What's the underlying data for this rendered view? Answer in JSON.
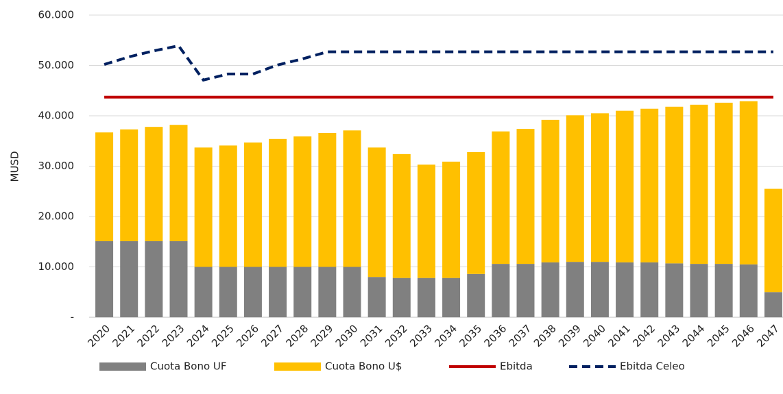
{
  "chart_data": {
    "type": "bar",
    "stacked": true,
    "y_label": "MUSD",
    "categories": [
      "2020",
      "2021",
      "2022",
      "2023",
      "2024",
      "2025",
      "2026",
      "2027",
      "2028",
      "2029",
      "2030",
      "2031",
      "2032",
      "2033",
      "2034",
      "2035",
      "2036",
      "2037",
      "2038",
      "2039",
      "2040",
      "2041",
      "2042",
      "2043",
      "2044",
      "2045",
      "2046",
      "2047"
    ],
    "series": [
      {
        "name": "Cuota Bono UF",
        "color": "#808080",
        "kind": "bar",
        "values": [
          15100,
          15100,
          15100,
          15100,
          10000,
          10000,
          10000,
          10000,
          10000,
          10000,
          10000,
          8000,
          7800,
          7800,
          7800,
          8600,
          10600,
          10600,
          10900,
          11000,
          11000,
          10900,
          10900,
          10700,
          10600,
          10600,
          10500,
          5000
        ]
      },
      {
        "name": "Cuota Bono U$",
        "color": "#ffc000",
        "kind": "bar",
        "values": [
          21600,
          22200,
          22700,
          23100,
          23700,
          24100,
          24700,
          25400,
          25900,
          26600,
          27100,
          25700,
          24600,
          22500,
          23100,
          24200,
          26300,
          26800,
          28300,
          29100,
          29500,
          30100,
          30500,
          31100,
          31600,
          32000,
          32400,
          20500
        ]
      },
      {
        "name": "Ebitda",
        "color": "#c00000",
        "kind": "line",
        "dash": false,
        "values": [
          43700,
          43700,
          43700,
          43700,
          43700,
          43700,
          43700,
          43700,
          43700,
          43700,
          43700,
          43700,
          43700,
          43700,
          43700,
          43700,
          43700,
          43700,
          43700,
          43700,
          43700,
          43700,
          43700,
          43700,
          43700,
          43700,
          43700,
          43700
        ]
      },
      {
        "name": "Ebitda Celeo",
        "color": "#002060",
        "kind": "line",
        "dash": true,
        "values": [
          50200,
          51700,
          52900,
          53900,
          47100,
          48300,
          48300,
          50100,
          51300,
          52700,
          52700,
          52700,
          52700,
          52700,
          52700,
          52700,
          52700,
          52700,
          52700,
          52700,
          52700,
          52700,
          52700,
          52700,
          52700,
          52700,
          52700,
          52700
        ]
      }
    ],
    "ylim": [
      0,
      60000
    ],
    "yticks": [
      {
        "value": 0,
        "label": "-"
      },
      {
        "value": 10000,
        "label": "10.000"
      },
      {
        "value": 20000,
        "label": "20.000"
      },
      {
        "value": 30000,
        "label": "30.000"
      },
      {
        "value": 40000,
        "label": "40.000"
      },
      {
        "value": 50000,
        "label": "50.000"
      },
      {
        "value": 60000,
        "label": "60.000"
      }
    ],
    "grid": true,
    "legend": "bottom"
  }
}
